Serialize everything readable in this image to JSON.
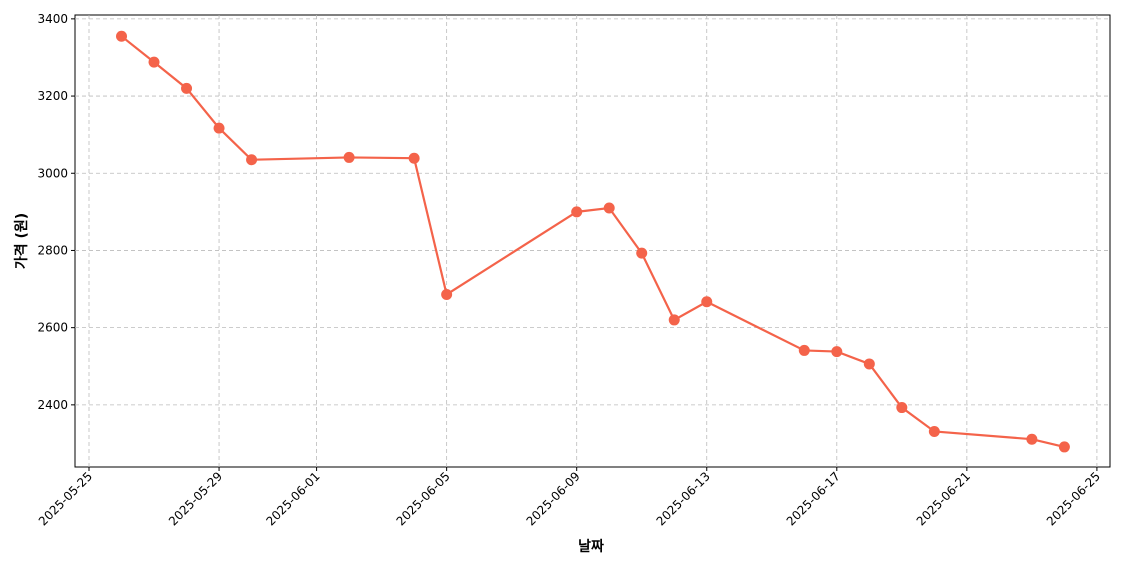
{
  "chart_data": {
    "type": "line",
    "x_label": "날짜",
    "y_label": "가격 (원)",
    "x": [
      "2025-05-26",
      "2025-05-27",
      "2025-05-28",
      "2025-05-29",
      "2025-05-30",
      "2025-06-02",
      "2025-06-04",
      "2025-06-05",
      "2025-06-09",
      "2025-06-10",
      "2025-06-11",
      "2025-06-12",
      "2025-06-13",
      "2025-06-16",
      "2025-06-17",
      "2025-06-18",
      "2025-06-19",
      "2025-06-20",
      "2025-06-23",
      "2025-06-24"
    ],
    "series": [
      {
        "color": "#f4634a",
        "values": [
          3355,
          3288,
          3220,
          3117,
          3035,
          3041,
          3039,
          2686,
          2900,
          2910,
          2793,
          2620,
          2667,
          2541,
          2538,
          2506,
          2393,
          2331,
          2311,
          2291
        ]
      }
    ],
    "xlim": [
      "2025-05-24T13:40",
      "2025-06-25T09:40"
    ],
    "xticks": [
      "2025-05-25",
      "2025-05-29",
      "2025-06-01",
      "2025-06-05",
      "2025-06-09",
      "2025-06-13",
      "2025-06-17",
      "2025-06-21",
      "2025-06-25"
    ],
    "ylim": [
      2239,
      3410
    ],
    "yticks": [
      2400,
      2600,
      2800,
      3000,
      3200,
      3400
    ],
    "grid": true
  }
}
